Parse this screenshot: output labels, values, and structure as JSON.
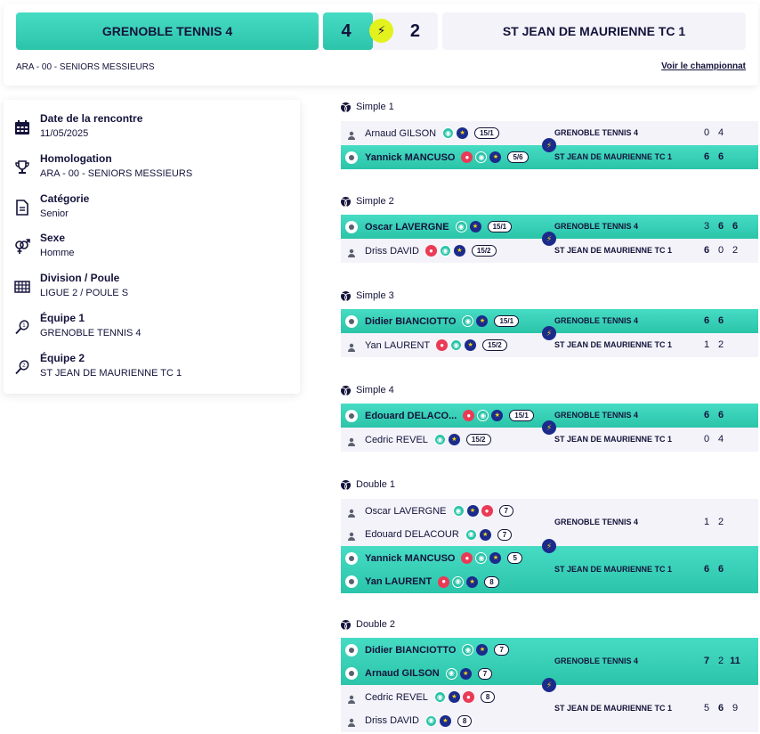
{
  "header": {
    "home_team": "GRENOBLE TENNIS 4",
    "home_score": "4",
    "away_score": "2",
    "away_team": "ST JEAN DE MAURIENNE TC 1",
    "competition": "ARA - 00 - SENIORS MESSIEURS",
    "championship_link": "Voir le championnat"
  },
  "info": {
    "date": {
      "label": "Date de la rencontre",
      "value": "11/05/2025",
      "icon": "calendar-icon"
    },
    "homologation": {
      "label": "Homologation",
      "value": "ARA - 00 - SENIORS MESSIEURS",
      "icon": "trophy-icon"
    },
    "category": {
      "label": "Catégorie",
      "value": "Senior",
      "icon": "document-icon"
    },
    "sex": {
      "label": "Sexe",
      "value": "Homme",
      "icon": "gender-icon"
    },
    "division": {
      "label": "Division / Poule",
      "value": "LIGUE 2 / POULE S",
      "icon": "grid-icon"
    },
    "team1": {
      "label": "Équipe 1",
      "value": "GRENOBLE TENNIS 4",
      "icon": "racket-1-icon"
    },
    "team2": {
      "label": "Équipe 2",
      "value": "ST JEAN DE MAURIENNE TC 1",
      "icon": "racket-2-icon"
    }
  },
  "matches": [
    {
      "title": "Simple 1",
      "home": {
        "players": [
          {
            "name": "Arnaud GILSON",
            "rank": "15/1"
          }
        ],
        "team": "GRENOBLE TENNIS 4",
        "scores": [
          "0",
          "4"
        ]
      },
      "away": {
        "players": [
          {
            "name": "Yannick MANCUSO",
            "rank": "5/6"
          }
        ],
        "team": "ST JEAN DE MAURIENNE TC 1",
        "scores": [
          "6",
          "6"
        ]
      }
    },
    {
      "title": "Simple 2",
      "home": {
        "players": [
          {
            "name": "Oscar LAVERGNE",
            "rank": "15/1"
          }
        ],
        "team": "GRENOBLE TENNIS 4",
        "scores": [
          "3",
          "6",
          "6"
        ]
      },
      "away": {
        "players": [
          {
            "name": "Driss DAVID",
            "rank": "15/2"
          }
        ],
        "team": "ST JEAN DE MAURIENNE TC 1",
        "scores": [
          "6",
          "0",
          "2"
        ]
      }
    },
    {
      "title": "Simple 3",
      "home": {
        "players": [
          {
            "name": "Didier BIANCIOTTO",
            "rank": "15/1"
          }
        ],
        "team": "GRENOBLE TENNIS 4",
        "scores": [
          "6",
          "6"
        ]
      },
      "away": {
        "players": [
          {
            "name": "Yan LAURENT",
            "rank": "15/2"
          }
        ],
        "team": "ST JEAN DE MAURIENNE TC 1",
        "scores": [
          "1",
          "2"
        ]
      }
    },
    {
      "title": "Simple 4",
      "home": {
        "players": [
          {
            "name": "Edouard DELACO...",
            "rank": "15/1"
          }
        ],
        "team": "GRENOBLE TENNIS 4",
        "scores": [
          "6",
          "6"
        ]
      },
      "away": {
        "players": [
          {
            "name": "Cedric REVEL",
            "rank": "15/2"
          }
        ],
        "team": "ST JEAN DE MAURIENNE TC 1",
        "scores": [
          "0",
          "4"
        ]
      }
    },
    {
      "title": "Double 1",
      "home": {
        "players": [
          {
            "name": "Oscar LAVERGNE",
            "rank": "7"
          },
          {
            "name": "Edouard DELACOUR",
            "rank": "7"
          }
        ],
        "team": "GRENOBLE TENNIS 4",
        "scores": [
          "1",
          "2"
        ]
      },
      "away": {
        "players": [
          {
            "name": "Yannick MANCUSO",
            "rank": "5"
          },
          {
            "name": "Yan LAURENT",
            "rank": "8"
          }
        ],
        "team": "ST JEAN DE MAURIENNE TC 1",
        "scores": [
          "6",
          "6"
        ]
      }
    },
    {
      "title": "Double 2",
      "home": {
        "players": [
          {
            "name": "Didier BIANCIOTTO",
            "rank": "7"
          },
          {
            "name": "Arnaud GILSON",
            "rank": "7"
          }
        ],
        "team": "GRENOBLE TENNIS 4",
        "scores": [
          "7",
          "2",
          "11"
        ]
      },
      "away": {
        "players": [
          {
            "name": "Cedric REVEL",
            "rank": "8"
          },
          {
            "name": "Driss DAVID",
            "rank": "8"
          }
        ],
        "team": "ST JEAN DE MAURIENNE TC 1",
        "scores": [
          "5",
          "6",
          "9"
        ]
      }
    }
  ],
  "colors": {
    "accent": "#2bc4a9",
    "dark": "#14133b",
    "light_bg": "#f3f3f9",
    "bolt": "#e3f21d"
  }
}
